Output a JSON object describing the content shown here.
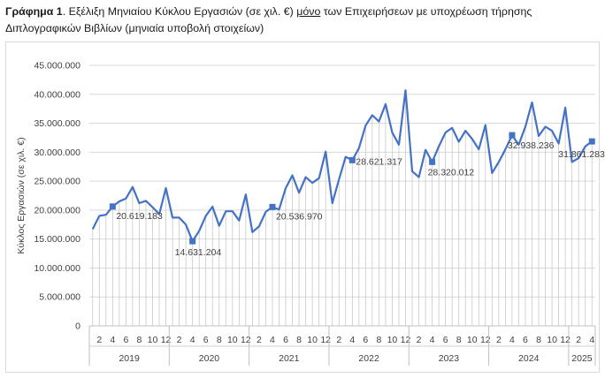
{
  "caption": {
    "prefix": "Γράφημα 1",
    "sep": ". ",
    "part1": "Εξέλιξη Μηνιαίου Κύκλου Εργασιών (σε χιλ. €) ",
    "emph": "μόνο",
    "part2": " των Επιχειρήσεων με υποχρέωση τήρησης Διπλογραφικών Βιβλίων (μηνιαία υποβολή στοιχείων)"
  },
  "colors": {
    "line": "#4472c4",
    "marker": "#4472c4",
    "drop": "#c8c8c8",
    "grid": "#d9d9d9"
  },
  "chart_data": {
    "type": "line",
    "title": "",
    "xlabel": "",
    "ylabel": "Κύκλος Εργασιών (σε χιλ. €)",
    "ylim": [
      0,
      45000000
    ],
    "yticks": [
      "0",
      "5.000.000",
      "10.000.000",
      "15.000.000",
      "20.000.000",
      "25.000.000",
      "30.000.000",
      "35.000.000",
      "40.000.000",
      "45.000.000"
    ],
    "ytick_values": [
      0,
      5000000,
      10000000,
      15000000,
      20000000,
      25000000,
      30000000,
      35000000,
      40000000,
      45000000
    ],
    "months": [
      1,
      2,
      3,
      4,
      5,
      6,
      7,
      8,
      9,
      10,
      11,
      12,
      1,
      2,
      3,
      4,
      5,
      6,
      7,
      8,
      9,
      10,
      11,
      12,
      1,
      2,
      3,
      4,
      5,
      6,
      7,
      8,
      9,
      10,
      11,
      12,
      1,
      2,
      3,
      4,
      5,
      6,
      7,
      8,
      9,
      10,
      11,
      12,
      1,
      2,
      3,
      4,
      5,
      6,
      7,
      8,
      9,
      10,
      11,
      12,
      1,
      2,
      3,
      4,
      5,
      6,
      7,
      8,
      9,
      10,
      11,
      12,
      1,
      2,
      3,
      4
    ],
    "month_tick_labels": [
      "2",
      "4",
      "6",
      "8",
      "10",
      "12"
    ],
    "years": [
      {
        "label": "2019",
        "months": 12
      },
      {
        "label": "2020",
        "months": 12
      },
      {
        "label": "2021",
        "months": 12
      },
      {
        "label": "2022",
        "months": 12
      },
      {
        "label": "2023",
        "months": 12
      },
      {
        "label": "2024",
        "months": 12
      },
      {
        "label": "2025",
        "months": 4
      }
    ],
    "series": [
      {
        "name": "Κύκλος Εργασιών",
        "values": [
          16700000,
          19000000,
          19200000,
          20619183,
          21500000,
          22000000,
          24000000,
          21200000,
          21600000,
          20500000,
          19300000,
          23800000,
          18700000,
          18700000,
          17500000,
          14631204,
          16400000,
          19000000,
          20600000,
          17300000,
          19800000,
          19800000,
          18200000,
          22700000,
          16200000,
          17200000,
          19700000,
          20536970,
          20100000,
          23800000,
          26000000,
          23000000,
          25700000,
          24700000,
          25500000,
          30100000,
          21200000,
          25300000,
          29200000,
          28621317,
          30700000,
          34600000,
          36400000,
          35300000,
          38300000,
          33400000,
          31300000,
          40700000,
          26700000,
          25700000,
          30400000,
          28320012,
          31000000,
          33400000,
          34200000,
          31800000,
          33700000,
          32300000,
          30500000,
          34700000,
          26400000,
          28300000,
          30500000,
          32938236,
          31300000,
          34400000,
          38600000,
          32800000,
          34400000,
          33700000,
          31500000,
          37700000,
          28300000,
          29000000,
          31000000,
          31861283
        ]
      }
    ],
    "highlighted_points": [
      {
        "index": 3,
        "label": "20.619.183"
      },
      {
        "index": 15,
        "label": "14.631.204"
      },
      {
        "index": 27,
        "label": "20.536.970"
      },
      {
        "index": 39,
        "label": "28.621.317"
      },
      {
        "index": 51,
        "label": "28.320.012"
      },
      {
        "index": 63,
        "label": "32.938.236"
      },
      {
        "index": 75,
        "label": "31.861.283"
      }
    ]
  }
}
